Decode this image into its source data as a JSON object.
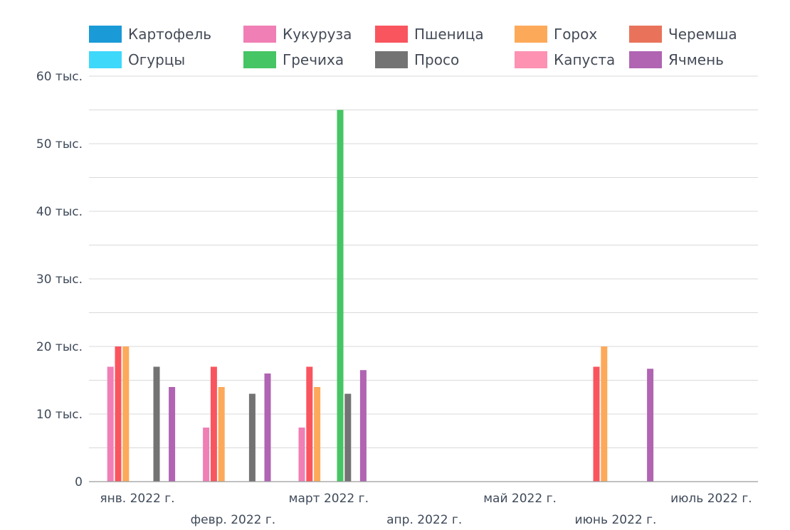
{
  "chart_data": {
    "type": "bar",
    "title": "",
    "xlabel": "",
    "ylabel": "",
    "ylim": [
      0,
      60000
    ],
    "y_ticks": [
      {
        "value": 0,
        "label": "0"
      },
      {
        "value": 10000,
        "label": "10 тыс."
      },
      {
        "value": 20000,
        "label": "20 тыс."
      },
      {
        "value": 30000,
        "label": "30 тыс."
      },
      {
        "value": 40000,
        "label": "40 тыс."
      },
      {
        "value": 50000,
        "label": "50 тыс."
      },
      {
        "value": 60000,
        "label": "60 тыс."
      }
    ],
    "grid": true,
    "legend_position": "top",
    "categories": [
      "янв. 2022 г.",
      "февр. 2022 г.",
      "март 2022 г.",
      "апр. 2022 г.",
      "май 2022 г.",
      "июнь 2022 г.",
      "июль 2022 г."
    ],
    "series": [
      {
        "name": "Картофель",
        "color": "#1a9ad6",
        "values": [
          0,
          0,
          0,
          0,
          0,
          0,
          0
        ]
      },
      {
        "name": "Кукуруза",
        "color": "#f07fb5",
        "values": [
          17000,
          8000,
          8000,
          0,
          0,
          0,
          0
        ]
      },
      {
        "name": "Пшеница",
        "color": "#f9555e",
        "values": [
          20000,
          17000,
          17000,
          0,
          0,
          17000,
          0
        ]
      },
      {
        "name": "Горох",
        "color": "#fda95a",
        "values": [
          20000,
          14000,
          14000,
          0,
          0,
          20000,
          0
        ]
      },
      {
        "name": "Черемша",
        "color": "#e9735a",
        "values": [
          0,
          0,
          0,
          0,
          0,
          0,
          0
        ]
      },
      {
        "name": "Огурцы",
        "color": "#3ed8fb",
        "values": [
          0,
          0,
          0,
          0,
          0,
          0,
          0
        ]
      },
      {
        "name": "Гречиха",
        "color": "#45c563",
        "values": [
          0,
          0,
          55000,
          0,
          0,
          0,
          0
        ]
      },
      {
        "name": "Просо",
        "color": "#737373",
        "values": [
          17000,
          13000,
          13000,
          0,
          0,
          0,
          0
        ]
      },
      {
        "name": "Капуста",
        "color": "#fd92b3",
        "values": [
          0,
          0,
          0,
          0,
          0,
          0,
          0
        ]
      },
      {
        "name": "Ячмень",
        "color": "#b064b2",
        "values": [
          14000,
          16000,
          16500,
          0,
          0,
          16700,
          0
        ]
      }
    ]
  }
}
